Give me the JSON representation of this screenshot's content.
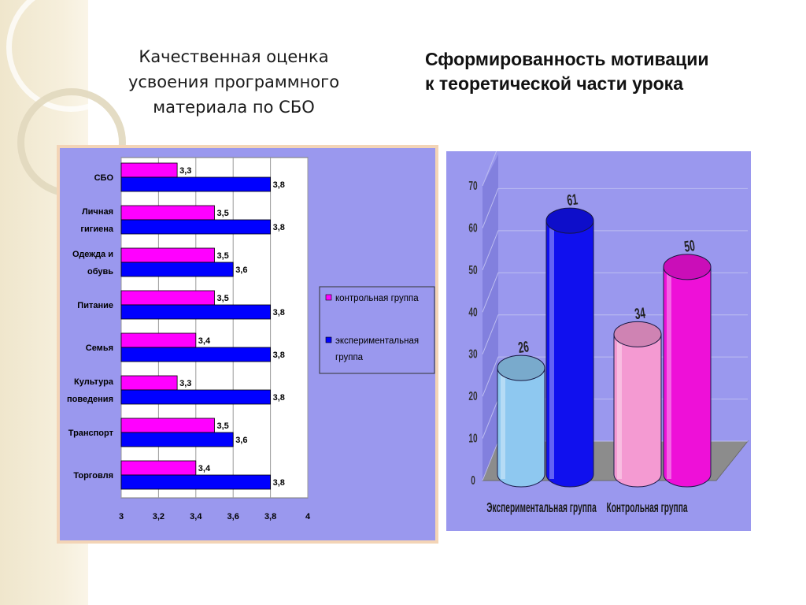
{
  "slide": {
    "title_left_lines": [
      "Качественная оценка",
      "усвоения программного",
      "материала по СБО"
    ],
    "title_right_lines": [
      "Сформированность мотивации",
      "к теоретической части урока"
    ]
  },
  "colors": {
    "control": "#ff00ff",
    "experimental": "#0000ff",
    "chart_bg": "#9a98ee",
    "frame": "#f3d4b6"
  },
  "chart_data": [
    {
      "type": "bar",
      "orientation": "horizontal",
      "categories": [
        [
          "СБО"
        ],
        [
          "Личная",
          "гигиена"
        ],
        [
          "Одежда и",
          "обувь"
        ],
        [
          "Питание"
        ],
        [
          "Семья"
        ],
        [
          "Культура",
          "поведения"
        ],
        [
          "Транспорт"
        ],
        [
          "Торговля"
        ]
      ],
      "series": [
        {
          "name": "контрольная группа",
          "color": "#ff00ff",
          "values": [
            3.3,
            3.5,
            3.5,
            3.5,
            3.4,
            3.3,
            3.5,
            3.4
          ]
        },
        {
          "name": "экспериментальная группа",
          "color": "#0000ff",
          "values": [
            3.8,
            3.8,
            3.6,
            3.8,
            3.8,
            3.8,
            3.6,
            3.8
          ]
        }
      ],
      "value_labels": [
        [
          "3,3",
          "3,5",
          "3,5",
          "3,5",
          "3,4",
          "3,3",
          "3,5",
          "3,4"
        ],
        [
          "3,8",
          "3,8",
          "3,6",
          "3,8",
          "3,8",
          "3,8",
          "3,6",
          "3,8"
        ]
      ],
      "xlim": [
        3,
        4
      ],
      "xticks": [
        3,
        3.2,
        3.4,
        3.6,
        3.8,
        4
      ],
      "xtick_labels": [
        "3",
        "3,2",
        "3,4",
        "3,6",
        "3,8",
        "4"
      ],
      "grid": true,
      "legend": {
        "placement": "right",
        "entries": [
          {
            "lines": [
              "контрольная группа"
            ],
            "color": "#ff00ff"
          },
          {
            "lines": [
              "экспериментальная",
              "группа"
            ],
            "color": "#0000ff"
          }
        ]
      }
    },
    {
      "type": "bar",
      "style": "3d-cylinder",
      "categories": [
        "Экспериментальная группа",
        "Контрольная группа"
      ],
      "bars": [
        {
          "category": "Экспериментальная группа",
          "value": 26,
          "label": "26",
          "color": "#8ec8f0"
        },
        {
          "category": "Экспериментальная группа",
          "value": 61,
          "label": "61",
          "color": "#1010ee"
        },
        {
          "category": "Контрольная группа",
          "value": 34,
          "label": "34",
          "color": "#f49ad2"
        },
        {
          "category": "Контрольная группа",
          "value": 50,
          "label": "50",
          "color": "#ee10d8"
        }
      ],
      "ylim": [
        0,
        70
      ],
      "yticks": [
        0,
        10,
        20,
        30,
        40,
        50,
        60,
        70
      ],
      "grid": true
    }
  ]
}
